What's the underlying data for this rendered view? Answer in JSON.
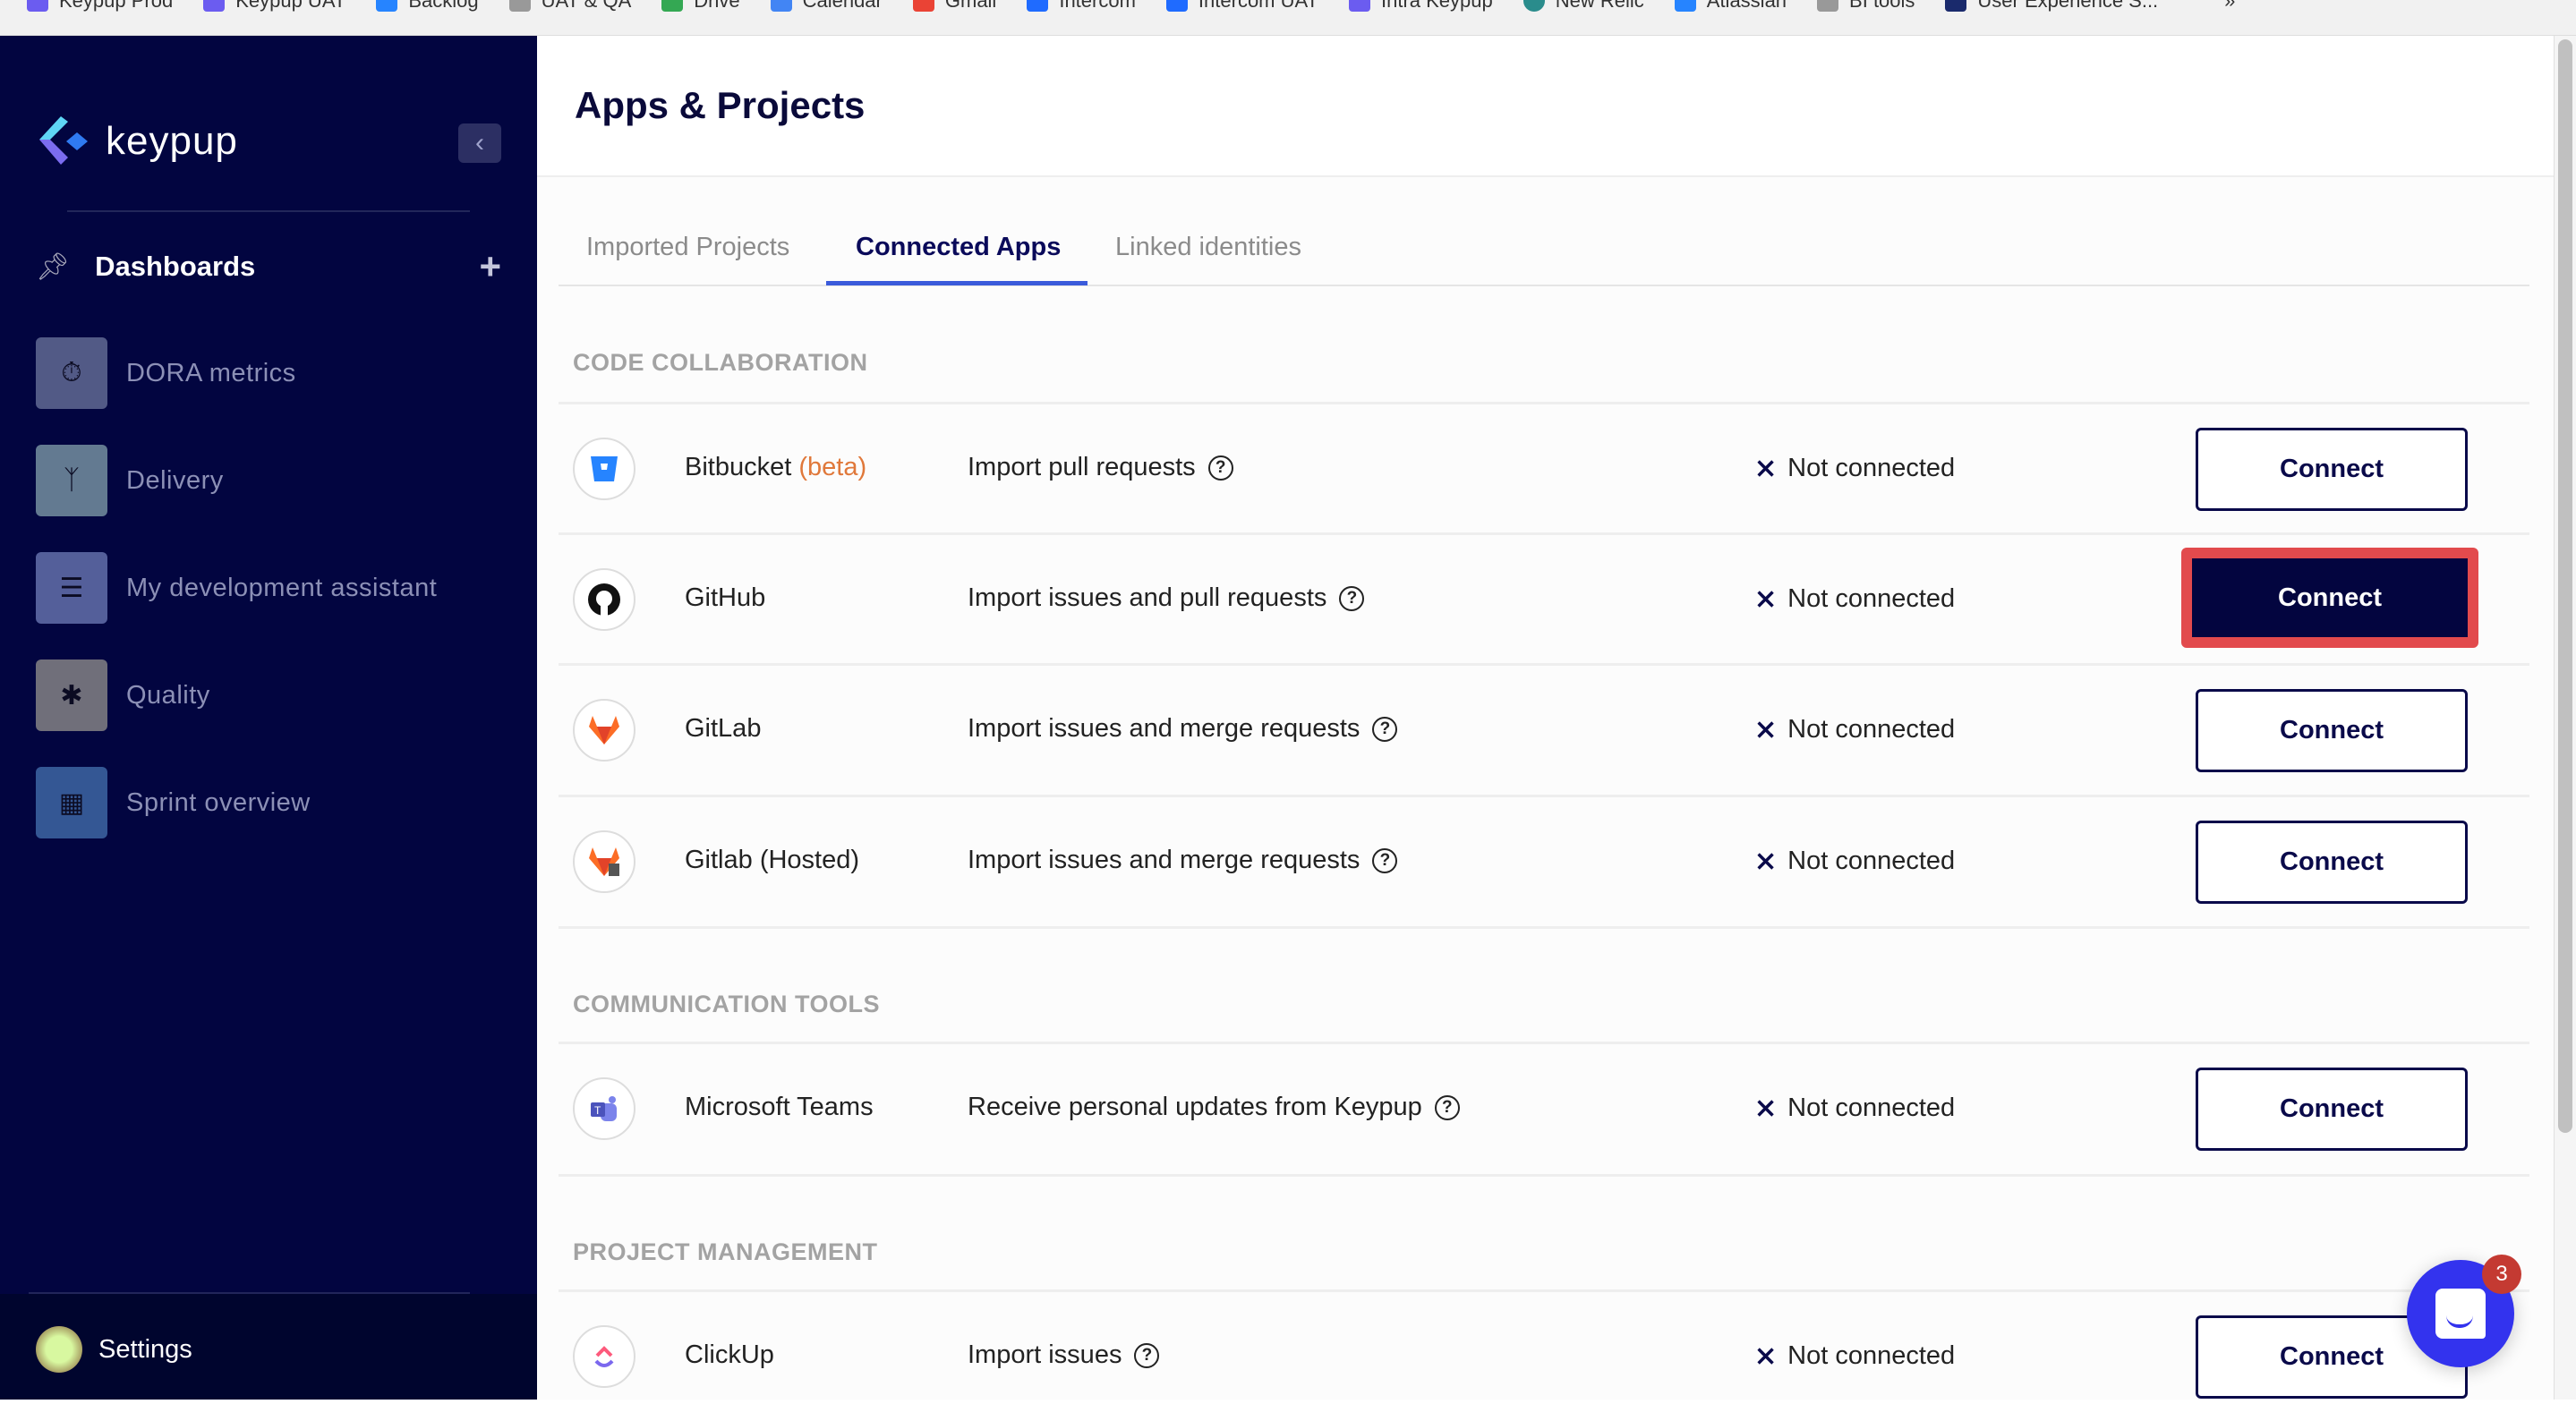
{
  "bookmarks": [
    "Keypup Prod",
    "Keypup UAT",
    "Backlog",
    "UAT & QA",
    "Drive",
    "Calendar",
    "Gmail",
    "Intercom",
    "Intercom UAT",
    "Intra Keypup",
    "New Relic",
    "Atlassian",
    "BI tools",
    "User Experience S...",
    "»"
  ],
  "sidebar": {
    "logo": "keypup",
    "dashboards_label": "Dashboards",
    "items": [
      {
        "label": "DORA metrics",
        "icon": "stopwatch-icon",
        "color": "#525a86"
      },
      {
        "label": "Delivery",
        "icon": "branch-icon",
        "color": "#637a91"
      },
      {
        "label": "My development assistant",
        "icon": "checklist-icon",
        "color": "#545f9a"
      },
      {
        "label": "Quality",
        "icon": "bug-icon",
        "color": "#706f7a"
      },
      {
        "label": "Sprint overview",
        "icon": "calendar-icon",
        "color": "#345794"
      }
    ],
    "settings_label": "Settings"
  },
  "header": {
    "title": "Apps & Projects"
  },
  "tabs": [
    {
      "label": "Imported Projects"
    },
    {
      "label": "Connected Apps",
      "active": true
    },
    {
      "label": "Linked identities"
    }
  ],
  "sections": [
    {
      "title": "CODE COLLABORATION",
      "apps": [
        {
          "name": "Bitbucket",
          "badge": "(beta)",
          "description": "Import pull requests",
          "status": "Not connected",
          "button": "Connect"
        },
        {
          "name": "GitHub",
          "description": "Import issues and pull requests",
          "status": "Not connected",
          "button": "Connect",
          "highlighted": true
        },
        {
          "name": "GitLab",
          "description": "Import issues and merge requests",
          "status": "Not connected",
          "button": "Connect"
        },
        {
          "name": "Gitlab (Hosted)",
          "description": "Import issues and merge requests",
          "status": "Not connected",
          "button": "Connect"
        }
      ]
    },
    {
      "title": "COMMUNICATION TOOLS",
      "apps": [
        {
          "name": "Microsoft Teams",
          "description": "Receive personal updates from Keypup",
          "status": "Not connected",
          "button": "Connect"
        }
      ]
    },
    {
      "title": "PROJECT MANAGEMENT",
      "apps": [
        {
          "name": "ClickUp",
          "description": "Import issues",
          "status": "Not connected",
          "button": "Connect"
        }
      ]
    }
  ],
  "chat": {
    "badge": "3"
  },
  "colors": {
    "sidebar": "#020540",
    "accent": "#3b5bdb",
    "highlight": "#e24a4d",
    "beta": "#e0783a"
  }
}
